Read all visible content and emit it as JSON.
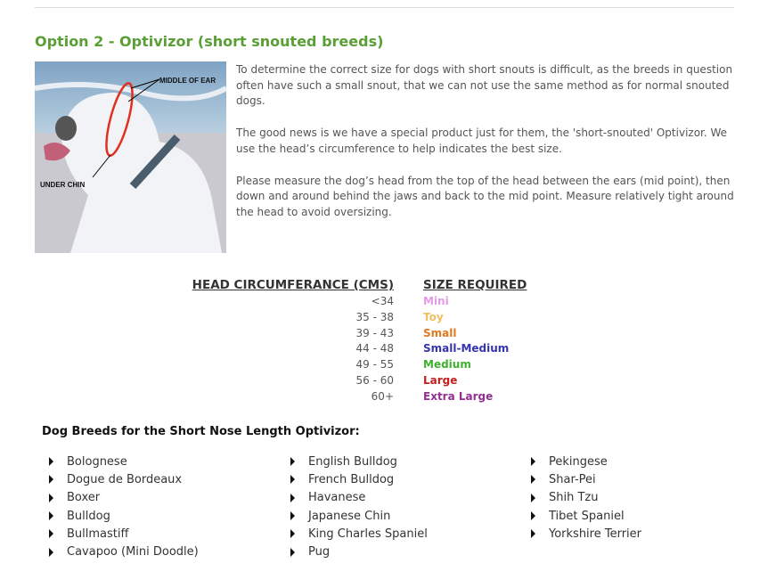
{
  "title": "Option 2 - Optivizor (short snouted breeds)",
  "photo": {
    "labels": {
      "ear": "MIDDLE OF EAR",
      "chin": "UNDER CHIN"
    }
  },
  "intro": [
    "To determine the correct size for dogs with short snouts is difficult, as the breeds in question often have such a small snout, that we can not use the same method as for normal snouted dogs.",
    "The good news is we have a special product just for them, the 'short-snouted' Optivizor.  We use the head’s circumference to help indicates the best size.",
    "Please measure the dog’s head from the top of the head  between the ears (mid point), then down and around behind the jaws and back to the mid point.  Measure relatively tight around the head to avoid oversizing."
  ],
  "size_table": {
    "headers": [
      "HEAD CIRCUMFERANCE (CMS)",
      "SIZE REQUIRED"
    ],
    "rows": [
      {
        "range": "<34",
        "size": "Mini",
        "color": "#e69ae6"
      },
      {
        "range": "35 - 38",
        "size": "Toy",
        "color": "#f0c060"
      },
      {
        "range": "39 - 43",
        "size": "Small",
        "color": "#e07a20"
      },
      {
        "range": "44 - 48",
        "size": "Small-Medium",
        "color": "#3535b0"
      },
      {
        "range": "49 - 55",
        "size": "Medium",
        "color": "#40b030"
      },
      {
        "range": "56 - 60",
        "size": "Large",
        "color": "#c02020"
      },
      {
        "range": "60+",
        "size": "Extra Large",
        "color": "#903090"
      }
    ]
  },
  "breeds_heading": "Dog Breeds for the Short Nose Length Optivizor:",
  "breeds": [
    [
      "Bolognese",
      "Dogue de Bordeaux",
      "Boxer",
      "Bulldog",
      "Bullmastiff",
      "Cavapoo (Mini Doodle)"
    ],
    [
      "English Bulldog",
      "French Bulldog",
      "Havanese",
      "Japanese Chin",
      "King Charles Spaniel",
      "Pug"
    ],
    [
      "Pekingese",
      "Shar-Pei",
      "Shih Tzu",
      "Tibet Spaniel",
      "Yorkshire Terrier"
    ]
  ]
}
